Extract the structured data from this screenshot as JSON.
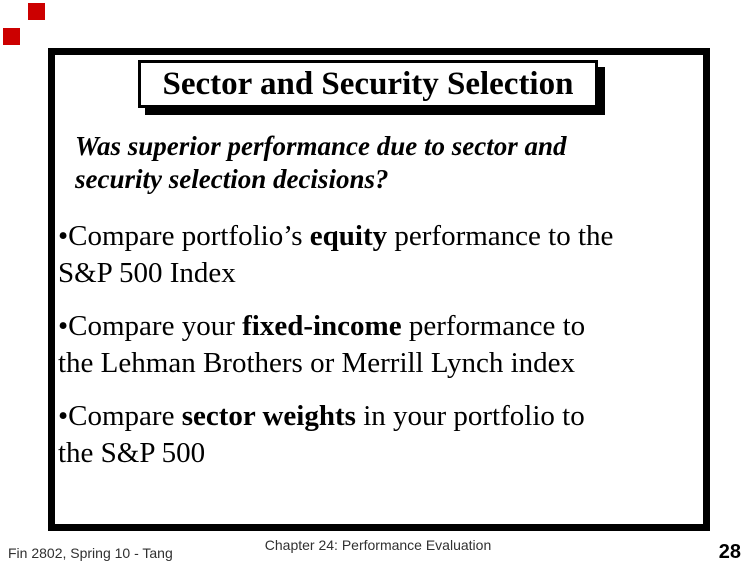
{
  "decorations": {
    "accent_color": "#cc0000"
  },
  "slide": {
    "title": "Sector and Security Selection",
    "question": "Was superior performance due to sector and\nsecurity selection decisions?",
    "bullets": [
      {
        "pre": "•Compare portfolio’s ",
        "bold": "equity",
        "post": " performance to the\nS&P 500 Index"
      },
      {
        "pre": "•Compare your ",
        "bold": "fixed-income",
        "post": " performance to\nthe Lehman Brothers or Merrill Lynch index"
      },
      {
        "pre": "•Compare ",
        "bold": "sector weights",
        "post": " in your portfolio to\nthe S&P 500"
      }
    ]
  },
  "footer": {
    "left": "Fin 2802, Spring 10 - Tang",
    "center": "Chapter 24: Performance Evaluation",
    "page_number": "28"
  }
}
